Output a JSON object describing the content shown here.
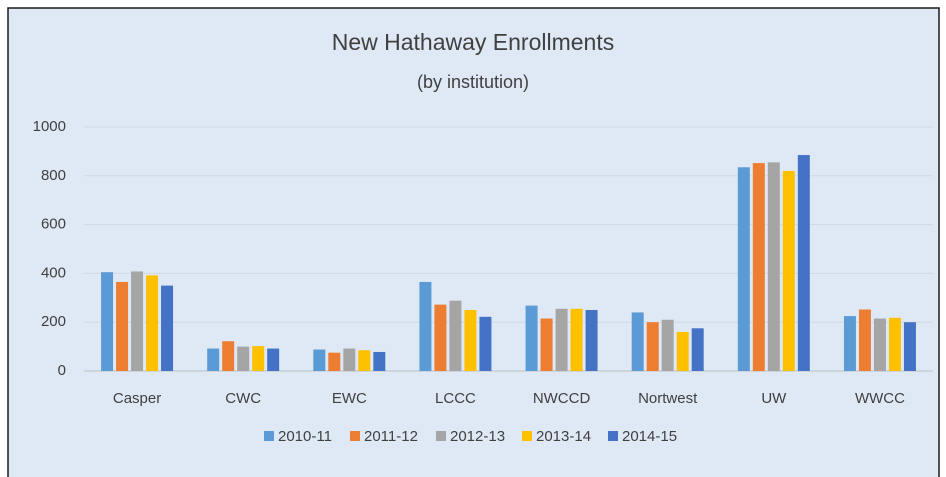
{
  "chart_data": {
    "type": "bar",
    "title": "New Hathaway Enrollments",
    "subtitle": "(by institution)",
    "categories": [
      "Casper",
      "CWC",
      "EWC",
      "LCCC",
      "NWCCD",
      "Nortwest",
      "UW",
      "WWCC"
    ],
    "series": [
      {
        "name": "2010-11",
        "color": "#5b9bd5",
        "values": [
          405,
          92,
          88,
          365,
          268,
          240,
          835,
          225
        ]
      },
      {
        "name": "2011-12",
        "color": "#ed7d31",
        "values": [
          365,
          122,
          75,
          272,
          215,
          200,
          852,
          252
        ]
      },
      {
        "name": "2012-13",
        "color": "#a5a5a5",
        "values": [
          408,
          100,
          92,
          288,
          255,
          210,
          855,
          215
        ]
      },
      {
        "name": "2013-14",
        "color": "#ffc000",
        "values": [
          392,
          102,
          85,
          250,
          255,
          160,
          820,
          218
        ]
      },
      {
        "name": "2014-15",
        "color": "#4472c4",
        "values": [
          350,
          92,
          78,
          222,
          250,
          175,
          885,
          200
        ]
      }
    ],
    "ylim": [
      0,
      1000
    ],
    "yticks": [
      0,
      200,
      400,
      600,
      800,
      1000
    ],
    "grid": true,
    "legend": "bottom"
  }
}
